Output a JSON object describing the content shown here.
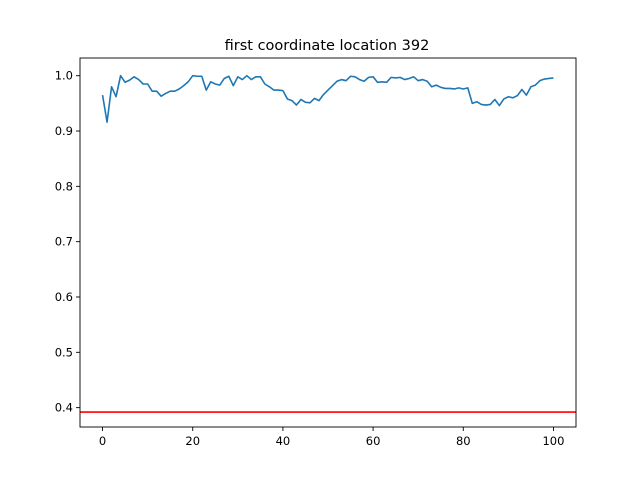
{
  "chart_data": {
    "type": "line",
    "title": "first coordinate location 392",
    "xlabel": "",
    "ylabel": "",
    "xlim": [
      -5,
      105
    ],
    "ylim": [
      0.365,
      1.032
    ],
    "grid": false,
    "x_ticks": [
      0,
      20,
      40,
      60,
      80,
      100
    ],
    "y_ticks": [
      0.4,
      0.5,
      0.6,
      0.7,
      0.8,
      0.9,
      1.0
    ],
    "x_tick_labels": [
      "0",
      "20",
      "40",
      "60",
      "80",
      "100"
    ],
    "y_tick_labels": [
      "0.4",
      "0.5",
      "0.6",
      "0.7",
      "0.8",
      "0.9",
      "1.0"
    ],
    "series": [
      {
        "color": "#1f77b4",
        "x": [
          0,
          1,
          2,
          3,
          4,
          5,
          6,
          7,
          8,
          9,
          10,
          11,
          12,
          13,
          14,
          15,
          16,
          17,
          18,
          19,
          20,
          21,
          22,
          23,
          24,
          25,
          26,
          27,
          28,
          29,
          30,
          31,
          32,
          33,
          34,
          35,
          36,
          37,
          38,
          39,
          40,
          41,
          42,
          43,
          44,
          45,
          46,
          47,
          48,
          49,
          50,
          51,
          52,
          53,
          54,
          55,
          56,
          57,
          58,
          59,
          60,
          61,
          62,
          63,
          64,
          65,
          66,
          67,
          68,
          69,
          70,
          71,
          72,
          73,
          74,
          75,
          76,
          77,
          78,
          79,
          80,
          81,
          82,
          83,
          84,
          85,
          86,
          87,
          88,
          89,
          90,
          91,
          92,
          93,
          94,
          95,
          96,
          97,
          98,
          99,
          100
        ],
        "y": [
          0.965,
          0.916,
          0.98,
          0.962,
          1.0,
          0.988,
          0.992,
          0.998,
          0.993,
          0.985,
          0.985,
          0.972,
          0.972,
          0.963,
          0.968,
          0.972,
          0.972,
          0.976,
          0.982,
          0.989,
          1.0,
          0.999,
          0.999,
          0.974,
          0.989,
          0.985,
          0.983,
          0.995,
          0.999,
          0.982,
          0.998,
          0.993,
          1.0,
          0.993,
          0.998,
          0.998,
          0.985,
          0.98,
          0.974,
          0.974,
          0.973,
          0.958,
          0.955,
          0.947,
          0.957,
          0.952,
          0.951,
          0.959,
          0.955,
          0.966,
          0.974,
          0.982,
          0.99,
          0.993,
          0.991,
          0.999,
          0.998,
          0.993,
          0.99,
          0.997,
          0.998,
          0.988,
          0.989,
          0.988,
          0.997,
          0.996,
          0.997,
          0.993,
          0.995,
          0.998,
          0.991,
          0.993,
          0.99,
          0.98,
          0.983,
          0.979,
          0.977,
          0.977,
          0.976,
          0.978,
          0.976,
          0.978,
          0.95,
          0.953,
          0.948,
          0.947,
          0.948,
          0.957,
          0.946,
          0.958,
          0.962,
          0.96,
          0.964,
          0.975,
          0.965,
          0.98,
          0.983,
          0.991,
          0.994,
          0.995,
          0.996
        ]
      },
      {
        "color": "#ff0000",
        "type": "hline",
        "y": 0.392
      }
    ]
  }
}
